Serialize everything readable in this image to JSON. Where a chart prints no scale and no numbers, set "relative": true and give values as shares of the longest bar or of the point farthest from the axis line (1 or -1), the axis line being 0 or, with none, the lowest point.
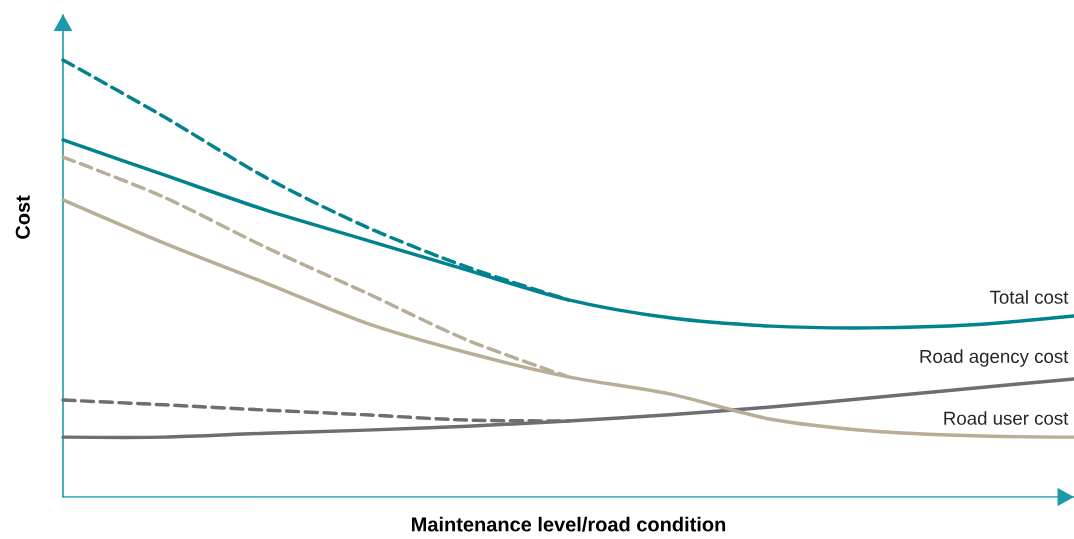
{
  "chart_data": {
    "type": "line",
    "xlabel": "Maintenance level/road condition",
    "ylabel": "Cost",
    "relative": true,
    "tick_labels": false,
    "marker": "none",
    "categories": [
      null,
      null,
      null,
      null,
      null,
      null,
      null,
      null,
      null,
      null,
      null
    ],
    "series": [
      {
        "name": "Total cost",
        "color": "#00838f",
        "line_style": "solid",
        "values": [
          0.817,
          0.737,
          0.657,
          0.588,
          0.519,
          0.451,
          0.41,
          0.391,
          0.387,
          0.394,
          0.414
        ]
      },
      {
        "color": "#00838f",
        "line_style": "dashed",
        "values": [
          1,
          0.87,
          0.732,
          0.618,
          0.526,
          0.451,
          null,
          null,
          null,
          null,
          null
        ]
      },
      {
        "name": "Road agency cost",
        "color": "#6d6e71",
        "line_style": "solid",
        "values": [
          0.137,
          0.137,
          0.146,
          0.153,
          0.162,
          0.174,
          0.188,
          0.206,
          0.227,
          0.249,
          0.27
        ]
      },
      {
        "color": "#6d6e71",
        "line_style": "dashed",
        "values": [
          0.222,
          0.211,
          0.199,
          0.188,
          0.176,
          0.174,
          null,
          null,
          null,
          null,
          null
        ]
      },
      {
        "name": "Road user cost",
        "color": "#b8ad96",
        "line_style": "solid",
        "values": [
          0.68,
          0.581,
          0.49,
          0.398,
          0.33,
          0.275,
          0.236,
          0.178,
          0.151,
          0.14,
          0.137
        ]
      },
      {
        "color": "#b8ad96",
        "line_style": "dashed",
        "values": [
          0.778,
          0.686,
          0.572,
          0.467,
          0.359,
          0.275,
          null,
          null,
          null,
          null,
          null
        ]
      }
    ]
  }
}
